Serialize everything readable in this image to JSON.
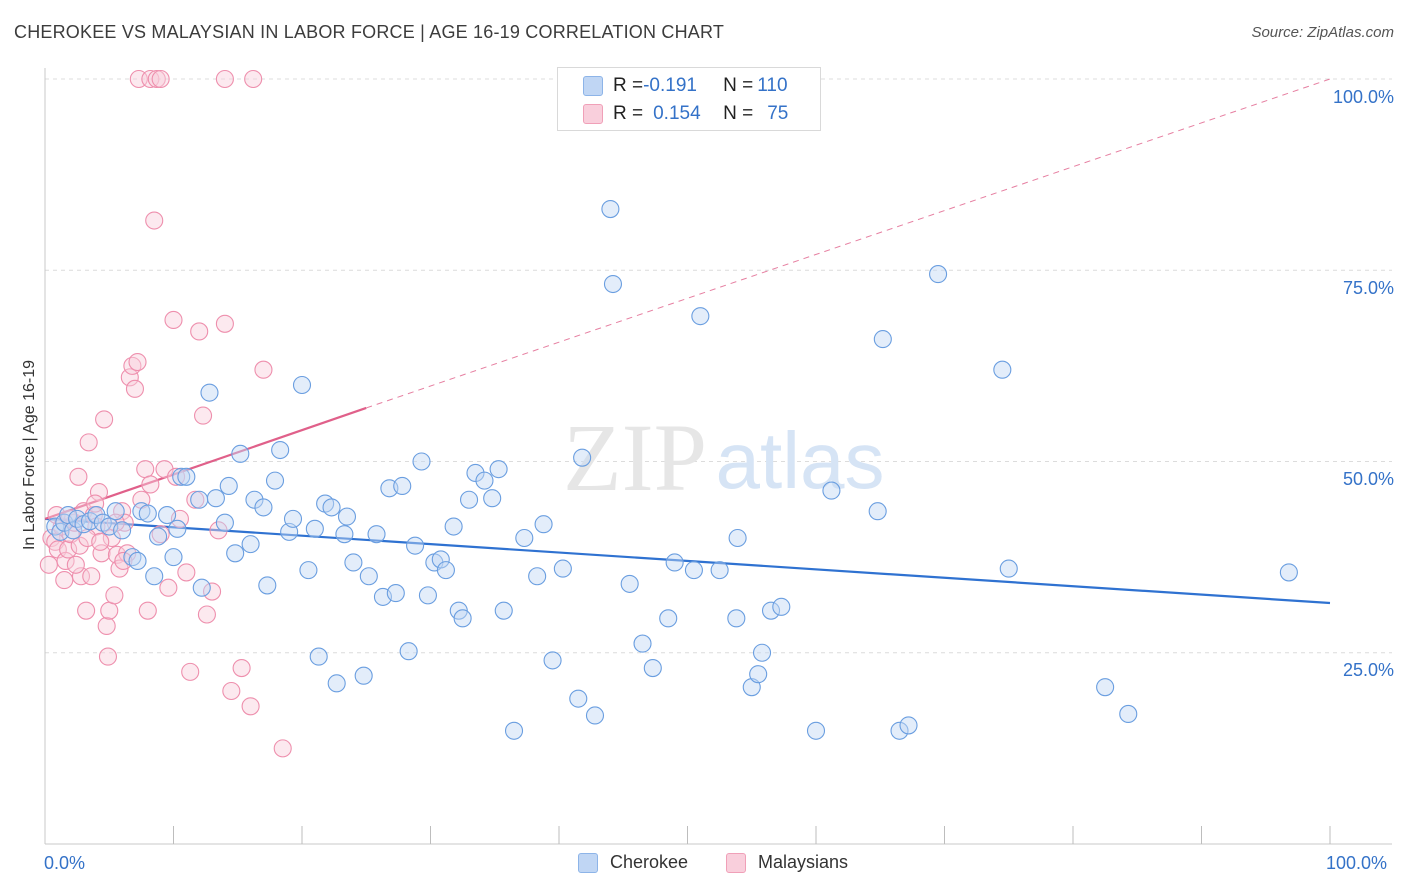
{
  "title": "CHEROKEE VS MALAYSIAN IN LABOR FORCE | AGE 16-19 CORRELATION CHART",
  "source": "Source: ZipAtlas.com",
  "watermark": {
    "zip": "ZIP",
    "atlas": "atlas"
  },
  "legend_top": {
    "rows": [
      {
        "r_label": "R = ",
        "r_value": "-0.191",
        "n_label": "N = ",
        "n_value": "110",
        "color": "#8db4e8",
        "fill": "#c0d6f4"
      },
      {
        "r_label": "R = ",
        "r_value": "0.154",
        "n_label": "N = ",
        "n_value": "75",
        "color": "#f0a0b8",
        "fill": "#f9cfdc"
      }
    ]
  },
  "x_tick_labels": {
    "min": "0.0%",
    "max": "100.0%"
  },
  "y_tick_labels": [
    "100.0%",
    "75.0%",
    "50.0%",
    "25.0%"
  ],
  "colors": {
    "cherokee": "#6a9ee0",
    "cherokee_line": "#2f72d1",
    "malaysian": "#ee8fad",
    "malaysian_line": "#e0608a",
    "accent": "#3472c8"
  },
  "chart_data": {
    "type": "scatter",
    "title": "CHEROKEE VS MALAYSIAN IN LABOR FORCE | AGE 16-19 CORRELATION CHART",
    "xlabel": "",
    "ylabel": "In Labor Force | Age 16-19",
    "xlim": [
      0,
      100
    ],
    "ylim": [
      0,
      100
    ],
    "grid": true,
    "legend_position": "bottom-center",
    "series": [
      {
        "name": "Cherokee",
        "r": -0.191,
        "n": 110,
        "trend": {
          "x": [
            0,
            100
          ],
          "y": [
            42.5,
            31.5
          ],
          "style": "solid"
        },
        "points": [
          [
            0.8,
            41.5
          ],
          [
            1.2,
            40.8
          ],
          [
            1.5,
            42.0
          ],
          [
            1.8,
            43.0
          ],
          [
            2.2,
            41.0
          ],
          [
            2.5,
            42.5
          ],
          [
            3.0,
            41.8
          ],
          [
            3.5,
            42.2
          ],
          [
            4.0,
            43.0
          ],
          [
            4.5,
            42.0
          ],
          [
            5.0,
            41.5
          ],
          [
            5.5,
            43.5
          ],
          [
            6.0,
            41.0
          ],
          [
            6.8,
            37.5
          ],
          [
            7.2,
            37.0
          ],
          [
            7.5,
            43.5
          ],
          [
            8.0,
            43.2
          ],
          [
            8.5,
            35.0
          ],
          [
            8.8,
            40.2
          ],
          [
            9.5,
            43.0
          ],
          [
            10.0,
            37.5
          ],
          [
            10.3,
            41.2
          ],
          [
            10.6,
            48.0
          ],
          [
            11.0,
            48.0
          ],
          [
            12.0,
            45.0
          ],
          [
            12.2,
            33.5
          ],
          [
            12.8,
            59.0
          ],
          [
            13.3,
            45.2
          ],
          [
            14.0,
            42.0
          ],
          [
            14.3,
            46.8
          ],
          [
            14.8,
            38.0
          ],
          [
            15.2,
            51.0
          ],
          [
            16.0,
            39.2
          ],
          [
            16.3,
            45.0
          ],
          [
            17.0,
            44.0
          ],
          [
            17.3,
            33.8
          ],
          [
            17.9,
            47.5
          ],
          [
            18.3,
            51.5
          ],
          [
            19.0,
            40.8
          ],
          [
            19.3,
            42.5
          ],
          [
            20.0,
            60.0
          ],
          [
            20.5,
            35.8
          ],
          [
            21.0,
            41.2
          ],
          [
            21.3,
            24.5
          ],
          [
            21.8,
            44.5
          ],
          [
            22.3,
            44.0
          ],
          [
            22.7,
            21.0
          ],
          [
            23.3,
            40.5
          ],
          [
            23.5,
            42.8
          ],
          [
            24.0,
            36.8
          ],
          [
            24.8,
            22.0
          ],
          [
            25.2,
            35.0
          ],
          [
            25.8,
            40.5
          ],
          [
            26.3,
            32.3
          ],
          [
            26.8,
            46.5
          ],
          [
            27.3,
            32.8
          ],
          [
            27.8,
            46.8
          ],
          [
            28.3,
            25.2
          ],
          [
            28.8,
            39.0
          ],
          [
            29.3,
            50.0
          ],
          [
            29.8,
            32.5
          ],
          [
            30.3,
            36.8
          ],
          [
            30.8,
            37.2
          ],
          [
            31.2,
            35.8
          ],
          [
            31.8,
            41.5
          ],
          [
            32.2,
            30.5
          ],
          [
            32.5,
            29.5
          ],
          [
            33.0,
            45.0
          ],
          [
            33.5,
            48.5
          ],
          [
            34.2,
            47.5
          ],
          [
            34.8,
            45.2
          ],
          [
            35.3,
            49.0
          ],
          [
            35.7,
            30.5
          ],
          [
            36.5,
            14.8
          ],
          [
            37.3,
            40.0
          ],
          [
            38.3,
            35.0
          ],
          [
            38.8,
            41.8
          ],
          [
            39.5,
            24.0
          ],
          [
            40.3,
            36.0
          ],
          [
            41.5,
            19.0
          ],
          [
            41.8,
            50.5
          ],
          [
            42.8,
            16.8
          ],
          [
            44.0,
            83.0
          ],
          [
            44.2,
            73.2
          ],
          [
            45.5,
            34.0
          ],
          [
            46.5,
            26.2
          ],
          [
            47.3,
            23.0
          ],
          [
            48.5,
            29.5
          ],
          [
            49.0,
            36.8
          ],
          [
            50.5,
            35.8
          ],
          [
            51.0,
            69.0
          ],
          [
            52.5,
            35.8
          ],
          [
            53.8,
            29.5
          ],
          [
            53.9,
            40.0
          ],
          [
            55.0,
            20.5
          ],
          [
            55.5,
            22.2
          ],
          [
            55.8,
            25.0
          ],
          [
            56.5,
            30.5
          ],
          [
            57.3,
            31.0
          ],
          [
            60.0,
            14.8
          ],
          [
            61.2,
            46.2
          ],
          [
            64.8,
            43.5
          ],
          [
            65.2,
            66.0
          ],
          [
            66.5,
            14.8
          ],
          [
            67.2,
            15.5
          ],
          [
            69.5,
            74.5
          ],
          [
            74.5,
            62.0
          ],
          [
            75.0,
            36.0
          ],
          [
            82.5,
            20.5
          ],
          [
            84.3,
            17.0
          ],
          [
            96.8,
            35.5
          ]
        ]
      },
      {
        "name": "Malaysians",
        "r": 0.154,
        "n": 75,
        "trend": {
          "x": [
            0,
            25
          ],
          "y": [
            42.5,
            57.0
          ],
          "style": "solid",
          "dashed_to": [
            100,
            100
          ]
        },
        "points": [
          [
            0.3,
            36.5
          ],
          [
            0.5,
            40.0
          ],
          [
            0.8,
            39.5
          ],
          [
            1.0,
            38.5
          ],
          [
            1.3,
            41.5
          ],
          [
            1.6,
            37.0
          ],
          [
            1.8,
            38.5
          ],
          [
            2.0,
            40.5
          ],
          [
            2.3,
            42.0
          ],
          [
            2.6,
            48.0
          ],
          [
            2.8,
            35.0
          ],
          [
            3.0,
            43.5
          ],
          [
            3.2,
            30.5
          ],
          [
            3.4,
            52.5
          ],
          [
            3.6,
            35.0
          ],
          [
            3.8,
            43.0
          ],
          [
            4.0,
            41.5
          ],
          [
            4.2,
            46.0
          ],
          [
            4.4,
            38.0
          ],
          [
            4.6,
            55.5
          ],
          [
            4.8,
            28.5
          ],
          [
            5.0,
            30.5
          ],
          [
            5.2,
            40.0
          ],
          [
            5.4,
            32.5
          ],
          [
            5.6,
            37.8
          ],
          [
            5.8,
            36.0
          ],
          [
            6.0,
            43.5
          ],
          [
            6.2,
            42.0
          ],
          [
            6.4,
            38.0
          ],
          [
            6.6,
            61.0
          ],
          [
            6.8,
            62.5
          ],
          [
            7.0,
            59.5
          ],
          [
            7.2,
            63.0
          ],
          [
            7.5,
            45.0
          ],
          [
            7.8,
            49.0
          ],
          [
            8.0,
            30.5
          ],
          [
            8.2,
            47.0
          ],
          [
            8.5,
            81.5
          ],
          [
            9.0,
            40.5
          ],
          [
            9.3,
            49.0
          ],
          [
            9.6,
            33.5
          ],
          [
            10.0,
            68.5
          ],
          [
            10.2,
            48.0
          ],
          [
            10.5,
            42.5
          ],
          [
            11.0,
            35.5
          ],
          [
            11.3,
            22.5
          ],
          [
            11.7,
            45.0
          ],
          [
            12.0,
            67.0
          ],
          [
            12.3,
            56.0
          ],
          [
            12.6,
            30.0
          ],
          [
            13.0,
            33.0
          ],
          [
            13.5,
            41.0
          ],
          [
            14.0,
            68.0
          ],
          [
            14.5,
            20.0
          ],
          [
            15.3,
            23.0
          ],
          [
            16.0,
            18.0
          ],
          [
            17.0,
            62.0
          ],
          [
            18.5,
            12.5
          ],
          [
            7.3,
            100.0
          ],
          [
            8.2,
            100.0
          ],
          [
            8.7,
            100.0
          ],
          [
            9.0,
            100.0
          ],
          [
            14.0,
            100.0
          ],
          [
            16.2,
            100.0
          ],
          [
            1.5,
            34.5
          ],
          [
            2.7,
            39.0
          ],
          [
            3.9,
            44.5
          ],
          [
            4.9,
            24.5
          ],
          [
            5.5,
            42.0
          ],
          [
            6.1,
            37.0
          ],
          [
            0.9,
            43.0
          ],
          [
            1.9,
            42.5
          ],
          [
            2.4,
            36.5
          ],
          [
            3.3,
            40.0
          ],
          [
            4.3,
            39.5
          ]
        ]
      }
    ]
  },
  "bottom_legend": [
    {
      "label": "Cherokee",
      "fill": "#c0d6f4",
      "border": "#8db4e8"
    },
    {
      "label": "Malaysians",
      "fill": "#f9cfdc",
      "border": "#f0a0b8"
    }
  ]
}
